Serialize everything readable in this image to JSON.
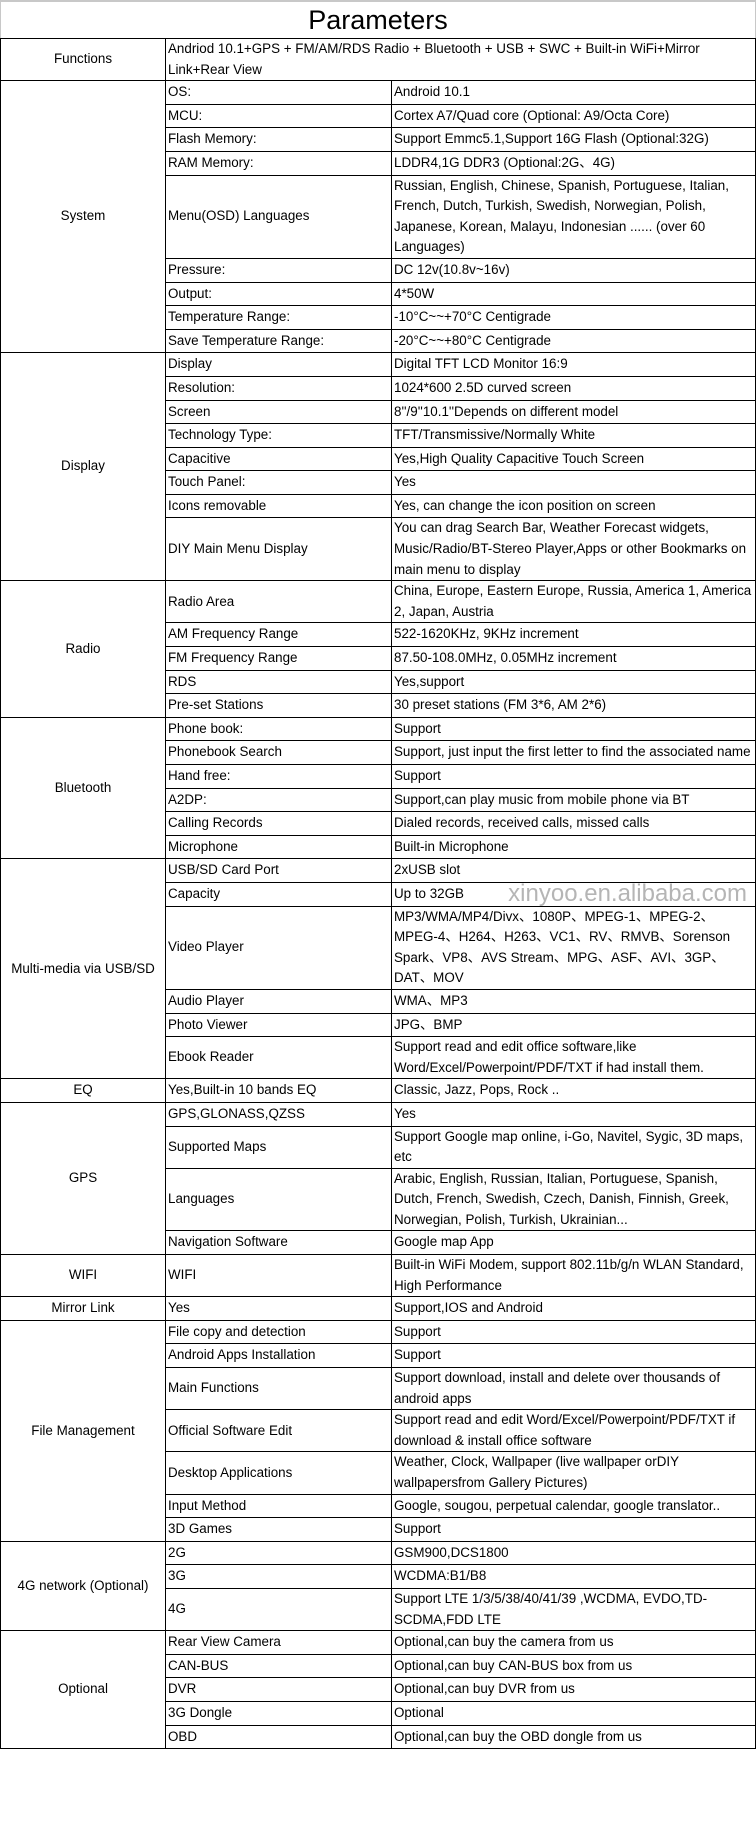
{
  "title": "Parameters",
  "watermark": "xinyoo.en.alibaba.com",
  "functions": {
    "label": "Functions",
    "value": "Andriod 10.1+GPS + FM/AM/RDS Radio + Bluetooth + USB + SWC + Built-in WiFi+Mirror Link+Rear View"
  },
  "sections": [
    {
      "category": "System",
      "rows": [
        [
          "OS:",
          "Android 10.1"
        ],
        [
          "MCU:",
          "Cortex A7/Quad core (Optional: A9/Octa Core)"
        ],
        [
          "Flash Memory:",
          "Support Emmc5.1,Support 16G Flash (Optional:32G)"
        ],
        [
          "RAM Memory:",
          "LDDR4,1G DDR3 (Optional:2G、4G)"
        ],
        [
          "Menu(OSD) Languages",
          "Russian, English, Chinese, Spanish, Portuguese, Italian, French, Dutch, Turkish, Swedish, Norwegian, Polish, Japanese, Korean, Malayu, Indonesian ...... (over 60 Languages)"
        ],
        [
          "Pressure:",
          "DC 12v(10.8v~16v)"
        ],
        [
          "Output:",
          "4*50W"
        ],
        [
          "Temperature Range:",
          "-10°C~~+70°C Centigrade"
        ],
        [
          "Save Temperature Range:",
          "-20°C~~+80°C Centigrade"
        ]
      ]
    },
    {
      "category": "Display",
      "rows": [
        [
          "Display",
          "Digital TFT LCD Monitor 16:9"
        ],
        [
          "Resolution:",
          "1024*600  2.5D curved screen"
        ],
        [
          "Screen",
          "8''/9''10.1''Depends on different model"
        ],
        [
          "Technology Type:",
          "TFT/Transmissive/Normally White"
        ],
        [
          "Capacitive",
          "Yes,High Quality Capacitive Touch Screen"
        ],
        [
          "Touch Panel:",
          "Yes"
        ],
        [
          "Icons removable",
          "Yes, can change the icon position on screen"
        ],
        [
          "DIY Main Menu Display",
          "You can drag Search Bar, Weather Forecast widgets, Music/Radio/BT-Stereo Player,Apps or other Bookmarks on main menu to display"
        ]
      ]
    },
    {
      "category": "Radio",
      "rows": [
        [
          "Radio Area",
          "China, Europe, Eastern Europe, Russia, America 1, America 2, Japan, Austria"
        ],
        [
          "AM Frequency Range",
          "522-1620KHz, 9KHz increment"
        ],
        [
          "FM Frequency Range",
          "87.50-108.0MHz, 0.05MHz increment"
        ],
        [
          "RDS",
          "Yes,support"
        ],
        [
          "Pre-set Stations",
          "30 preset stations (FM 3*6, AM 2*6)"
        ]
      ]
    },
    {
      "category": "Bluetooth",
      "rows": [
        [
          "Phone book:",
          "Support"
        ],
        [
          "Phonebook Search",
          "Support, just input the first letter to find the associated name"
        ],
        [
          "Hand free:",
          "Support"
        ],
        [
          "A2DP:",
          "Support,can play music from mobile phone via BT"
        ],
        [
          "Calling Records",
          "Dialed records, received calls, missed calls"
        ],
        [
          "Microphone",
          "Built-in Microphone"
        ]
      ]
    },
    {
      "category": "Multi-media via USB/SD",
      "rows": [
        [
          "USB/SD Card Port",
          "2xUSB slot"
        ],
        [
          "Capacity",
          "Up to 32GB"
        ],
        [
          "Video Player",
          "MP3/WMA/MP4/Divx、1080P、MPEG-1、MPEG-2、MPEG-4、H264、H263、VC1、RV、RMVB、Sorenson Spark、VP8、AVS Stream、MPG、ASF、AVI、3GP、DAT、MOV"
        ],
        [
          "Audio Player",
          "WMA、MP3"
        ],
        [
          "Photo Viewer",
          "JPG、BMP"
        ],
        [
          "Ebook Reader",
          "Support read and edit office software,like Word/Excel/Powerpoint/PDF/TXT if had  install them."
        ]
      ]
    },
    {
      "category": "EQ",
      "rows": [
        [
          "Yes,Built-in 10 bands EQ",
          "Classic, Jazz, Pops, Rock .."
        ]
      ]
    },
    {
      "category": "GPS",
      "rows": [
        [
          "GPS,GLONASS,QZSS",
          "Yes"
        ],
        [
          "Supported Maps",
          "Support Google map online, i-Go, Navitel, Sygic, 3D maps, etc"
        ],
        [
          "Languages",
          "Arabic, English, Russian, Italian, Portuguese, Spanish, Dutch, French, Swedish, Czech, Danish, Finnish, Greek, Norwegian, Polish, Turkish, Ukrainian..."
        ],
        [
          "Navigation Software",
          "Google map App"
        ]
      ]
    },
    {
      "category": "WIFI",
      "rows": [
        [
          "WIFI",
          "Built-in WiFi Modem, support 802.11b/g/n WLAN Standard, High Performance"
        ]
      ]
    },
    {
      "category": "Mirror Link",
      "rows": [
        [
          "Yes",
          "Support,IOS and Android"
        ]
      ]
    },
    {
      "category": "File Management",
      "rows": [
        [
          "File copy and detection",
          "Support"
        ],
        [
          "Android Apps Installation",
          "Support"
        ],
        [
          "Main Functions",
          "Support download, install and delete over thousands of android apps"
        ],
        [
          "Official Software Edit",
          "Support read and edit Word/Excel/Powerpoint/PDF/TXT if download & install office software"
        ],
        [
          "Desktop Applications",
          "Weather, Clock, Wallpaper (live wallpaper orDIY wallpapersfrom Gallery Pictures)"
        ],
        [
          "Input Method",
          "Google, sougou, perpetual calendar, google translator.."
        ],
        [
          "3D Games",
          "Support"
        ]
      ]
    },
    {
      "category": "4G network (Optional)",
      "rows": [
        [
          "2G",
          "GSM900,DCS1800"
        ],
        [
          "3G",
          "WCDMA:B1/B8"
        ],
        [
          "4G",
          "Support LTE 1/3/5/38/40/41/39 ,WCDMA, EVDO,TD-SCDMA,FDD LTE"
        ]
      ]
    },
    {
      "category": "Optional",
      "rows": [
        [
          "Rear View Camera",
          "Optional,can buy the camera from us"
        ],
        [
          "CAN-BUS",
          "Optional,can buy CAN-BUS box from us"
        ],
        [
          "DVR",
          "Optional,can buy DVR from us"
        ],
        [
          "3G Dongle",
          "Optional"
        ],
        [
          "OBD",
          "Optional,can buy the OBD dongle from us"
        ]
      ]
    }
  ]
}
